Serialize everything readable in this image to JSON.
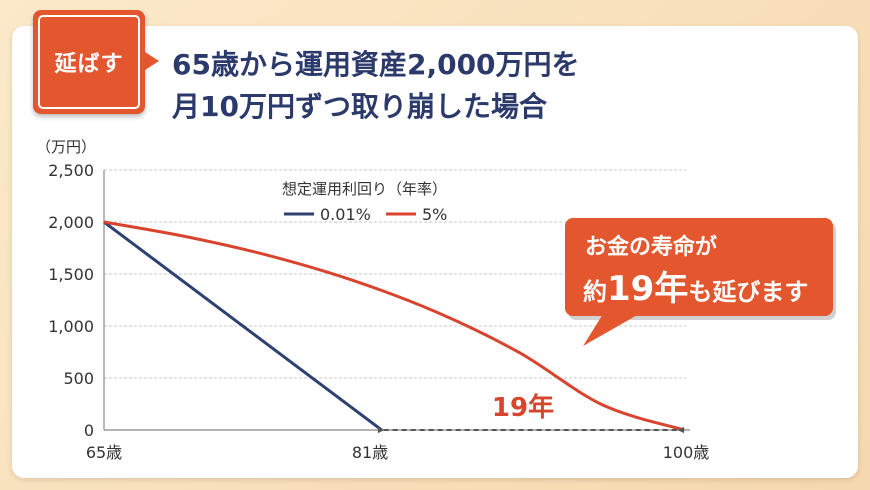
{
  "badge": {
    "label": "延ばす"
  },
  "headline": {
    "line1": "65歳から運用資産2,000万円を",
    "line2": "月10万円ずつ取り崩した場合"
  },
  "colors": {
    "accent": "#e4572e",
    "navy": "#2f4170",
    "red": "#d8442e",
    "grid": "#c8c8c8"
  },
  "chart_data": {
    "type": "line",
    "unit_label": "（万円）",
    "ylim": [
      0,
      2500
    ],
    "yticks": [
      {
        "value": 0,
        "label": "0"
      },
      {
        "value": 500,
        "label": "500"
      },
      {
        "value": 1000,
        "label": "1,000"
      },
      {
        "value": 1500,
        "label": "1,500"
      },
      {
        "value": 2000,
        "label": "2,000"
      },
      {
        "value": 2500,
        "label": "2,500"
      }
    ],
    "xlim": [
      65,
      100
    ],
    "xticks": [
      {
        "value": 65,
        "label": "65歳"
      },
      {
        "value": 81,
        "label": "81歳"
      },
      {
        "value": 100,
        "label": "100歳"
      }
    ],
    "legend_title": "想定運用利回り（年率）",
    "series": [
      {
        "name": "0.01%",
        "color": "#2f4170",
        "points": [
          [
            65,
            2000
          ],
          [
            81.7,
            0
          ]
        ]
      },
      {
        "name": "5%",
        "color": "#d8442e",
        "points": [
          [
            65,
            2000
          ],
          [
            70,
            1857
          ],
          [
            75,
            1674
          ],
          [
            80,
            1437
          ],
          [
            85,
            1133
          ],
          [
            90,
            742
          ],
          [
            95,
            240
          ],
          [
            99.9,
            0
          ]
        ]
      }
    ],
    "annotation": {
      "range_label": "19年",
      "from": 81.7,
      "to": 99.9,
      "callout_line1": "お金の寿命が",
      "callout_line2_prefix": "約",
      "callout_line2_bold": "19年",
      "callout_line2_suffix": "も延びます"
    }
  }
}
